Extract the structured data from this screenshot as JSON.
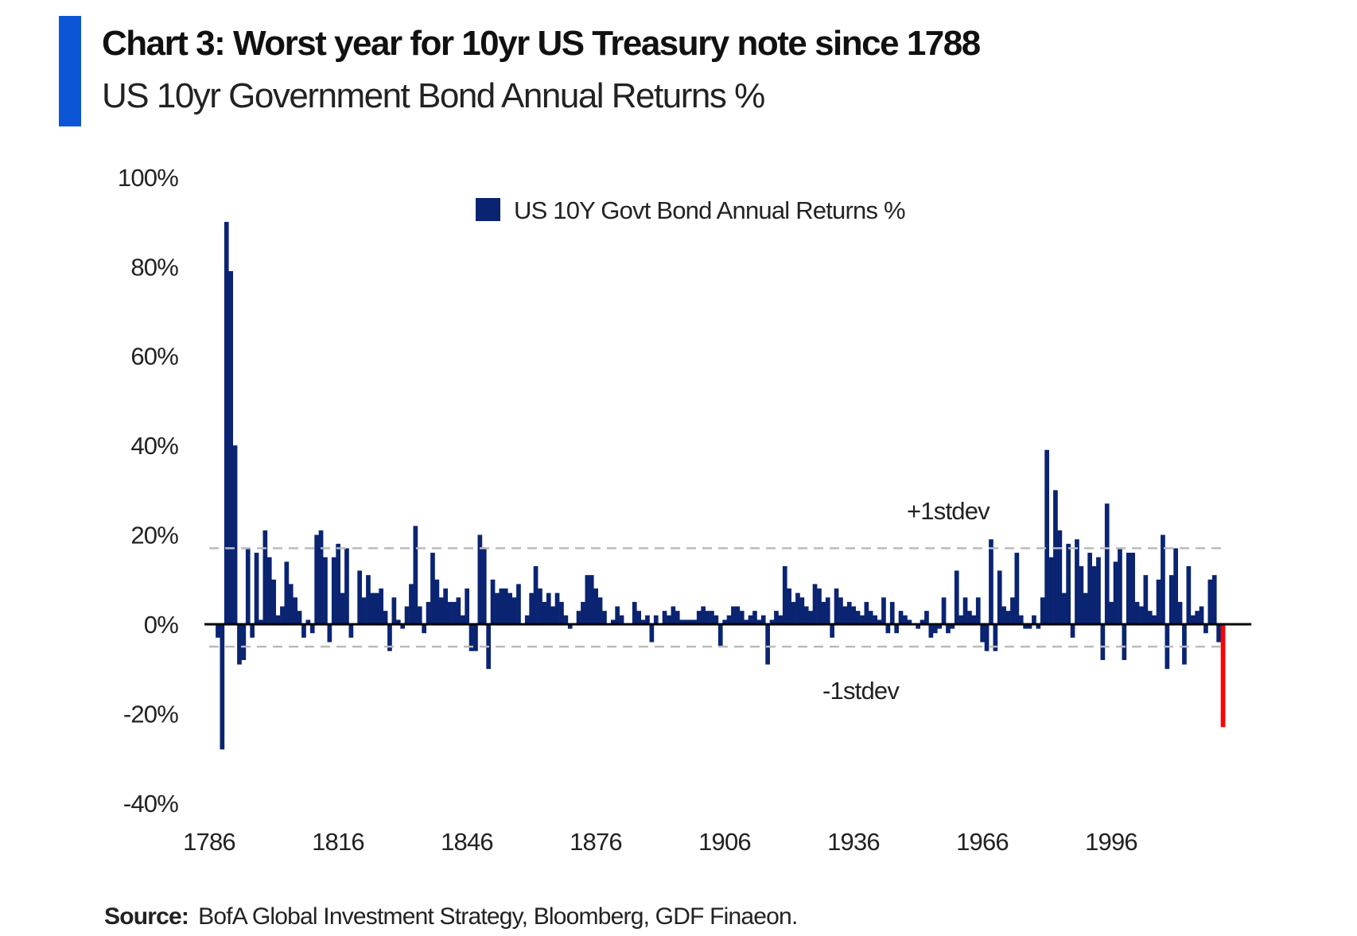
{
  "title": "Chart 3: Worst year for 10yr US Treasury note since 1788",
  "subtitle": "US 10yr Government Bond Annual Returns %",
  "source_label": "Source:",
  "source_text": "BofA Global Investment Strategy, Bloomberg, GDF Finaeon.",
  "colors": {
    "accent": "#0b55d6",
    "bars": "#0a2472",
    "highlight": "#ff0000",
    "stdev_lines": "#bbbbbb"
  },
  "chart_data": {
    "type": "bar",
    "title": "Chart 3: Worst year for 10yr US Treasury note since 1788",
    "xlabel": "",
    "ylabel": "",
    "ylim": [
      -40,
      100
    ],
    "xlim": [
      1786,
      2024
    ],
    "yticks": [
      "100%",
      "80%",
      "60%",
      "40%",
      "20%",
      "0%",
      "-20%",
      "-40%"
    ],
    "ytick_values": [
      100,
      80,
      60,
      40,
      20,
      0,
      -20,
      -40
    ],
    "xticks": [
      "1786",
      "1816",
      "1846",
      "1876",
      "1906",
      "1936",
      "1966",
      "1996"
    ],
    "xtick_values": [
      1786,
      1816,
      1846,
      1876,
      1906,
      1936,
      1966,
      1996
    ],
    "grid": false,
    "legend": {
      "position": "top-center",
      "entries": [
        "US 10Y Govt Bond Annual Returns %"
      ]
    },
    "series": [
      {
        "name": "US 10Y Govt Bond Annual Returns %",
        "start_year": 1788,
        "values": [
          -3,
          -28,
          90,
          79,
          40,
          -9,
          -8,
          17,
          -3,
          16,
          1,
          21,
          15,
          10,
          2,
          4,
          14,
          9,
          6,
          3,
          -3,
          1,
          -2,
          20,
          21,
          15,
          -4,
          15,
          18,
          7,
          17,
          -3,
          0,
          12,
          6,
          11,
          7,
          7,
          8,
          3,
          -6,
          6,
          1,
          -1,
          4,
          9,
          22,
          4,
          -2,
          5,
          16,
          10,
          6,
          8,
          5,
          5,
          6,
          2,
          8,
          -6,
          -6,
          20,
          17,
          -10,
          10,
          7,
          8,
          8,
          7,
          6,
          9,
          0,
          2,
          7,
          13,
          8,
          5,
          7,
          4,
          7,
          5,
          2,
          -1,
          0,
          3,
          5,
          11,
          11,
          8,
          6,
          3,
          0,
          1,
          4,
          2,
          0,
          0,
          5,
          3,
          1,
          2,
          -4,
          2,
          0,
          3,
          2,
          4,
          3,
          1,
          1,
          1,
          1,
          3,
          4,
          3,
          3,
          2,
          -5,
          1,
          2,
          4,
          4,
          3,
          1,
          2,
          3,
          1,
          2,
          -9,
          1,
          3,
          2,
          13,
          8,
          5,
          7,
          6,
          4,
          3,
          9,
          8,
          5,
          6,
          -3,
          8,
          6,
          4,
          5,
          4,
          3,
          2,
          5,
          3,
          2,
          1,
          6,
          -2,
          5,
          -2,
          3,
          2,
          1,
          0,
          -1,
          1,
          3,
          -3,
          -2,
          -1,
          6,
          -2,
          -1,
          12,
          2,
          6,
          3,
          2,
          6,
          -4,
          -6,
          19,
          -6,
          12,
          4,
          3,
          6,
          16,
          2,
          -1,
          -1,
          2,
          -1,
          6,
          39,
          15,
          30,
          21,
          7,
          18,
          -3,
          19,
          13,
          7,
          16,
          13,
          15,
          -8,
          27,
          5,
          14,
          17,
          -8,
          16,
          16,
          5,
          4,
          11,
          3,
          2,
          10,
          20,
          -10,
          11,
          17,
          5,
          -9,
          13,
          2,
          3,
          4,
          -2,
          10,
          11,
          -4,
          -23
        ]
      }
    ],
    "highlight": {
      "year": 2022,
      "value": -23
    },
    "reference_lines": [
      {
        "label": "+1stdev",
        "value": 17
      },
      {
        "label": "-1stdev",
        "value": -5
      }
    ]
  }
}
